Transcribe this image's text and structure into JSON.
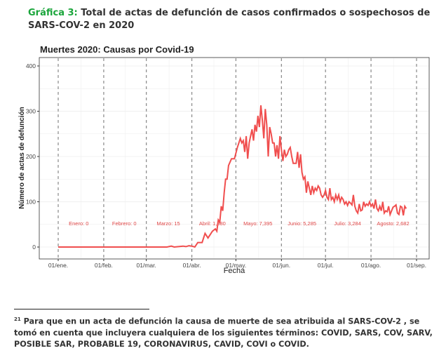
{
  "caption": {
    "label": "Gráfica 3:",
    "text": " Total de actas de defunción de casos confirmados o sospechosos de SARS-COV-2  en 2020"
  },
  "footnote": {
    "number": "21",
    "text": " Para que en un acta de defunción la causa de muerte de sea atribuida al SARS-COV-2 , se tomó en cuenta que incluyera cualquiera de los siguientes términos: COVID, SARS, COV, SARV, POSIBLE SAR, PROBABLE 19, CORONAVIRUS, CAVID, COVI o COVID."
  },
  "chart_data": {
    "type": "line",
    "title": "Muertes 2020: Causas por Covid-19",
    "xlabel": "Fecha",
    "ylabel": "Número de actas de defunción",
    "ylim": [
      0,
      400
    ],
    "yticks": [
      0,
      100,
      200,
      300,
      400
    ],
    "xlim": [
      "2020-01-01",
      "2020-09-01"
    ],
    "xticks": [
      {
        "date": "2020-01-01",
        "label": "01/ene."
      },
      {
        "date": "2020-02-01",
        "label": "01/feb."
      },
      {
        "date": "2020-03-01",
        "label": "01/mar."
      },
      {
        "date": "2020-04-01",
        "label": "01/abr."
      },
      {
        "date": "2020-05-01",
        "label": "01/may."
      },
      {
        "date": "2020-06-01",
        "label": "01/jun."
      },
      {
        "date": "2020-07-01",
        "label": "01/jul."
      },
      {
        "date": "2020-08-01",
        "label": "01/ago."
      },
      {
        "date": "2020-09-01",
        "label": "01/sep."
      }
    ],
    "grid": true,
    "line_color": "#f04e4e",
    "annotations": [
      {
        "date": "2020-01-15",
        "label": "Enero: 0"
      },
      {
        "date": "2020-02-15",
        "label": "Febrero: 0"
      },
      {
        "date": "2020-03-16",
        "label": "Marzo: 15"
      },
      {
        "date": "2020-04-15",
        "label": "Abril: 1,880"
      },
      {
        "date": "2020-05-16",
        "label": "Mayo: 7,395"
      },
      {
        "date": "2020-06-15",
        "label": "Junio: 5,285"
      },
      {
        "date": "2020-07-16",
        "label": "Julio: 3,284"
      },
      {
        "date": "2020-08-16",
        "label": "Agosto: 2,682"
      }
    ],
    "series": [
      {
        "x": [
          "2020-01-01",
          "2020-03-15",
          "2020-03-18",
          "2020-03-20",
          "2020-03-23",
          "2020-03-26",
          "2020-03-28",
          "2020-03-30",
          "2020-04-01",
          "2020-04-03",
          "2020-04-05",
          "2020-04-08",
          "2020-04-10",
          "2020-04-12",
          "2020-04-15",
          "2020-04-17",
          "2020-04-18",
          "2020-04-19",
          "2020-04-20",
          "2020-04-21",
          "2020-04-22",
          "2020-04-23",
          "2020-04-24",
          "2020-04-25",
          "2020-04-26",
          "2020-04-28",
          "2020-04-30",
          "2020-05-02",
          "2020-05-04",
          "2020-05-05",
          "2020-05-06",
          "2020-05-07",
          "2020-05-08",
          "2020-05-09",
          "2020-05-10",
          "2020-05-11",
          "2020-05-12",
          "2020-05-13",
          "2020-05-14",
          "2020-05-15",
          "2020-05-16",
          "2020-05-17",
          "2020-05-18",
          "2020-05-19",
          "2020-05-20",
          "2020-05-21",
          "2020-05-22",
          "2020-05-23",
          "2020-05-24",
          "2020-05-25",
          "2020-05-26",
          "2020-05-27",
          "2020-05-28",
          "2020-05-29",
          "2020-05-30",
          "2020-05-31",
          "2020-06-01",
          "2020-06-02",
          "2020-06-03",
          "2020-06-04",
          "2020-06-05",
          "2020-06-06",
          "2020-06-07",
          "2020-06-08",
          "2020-06-09",
          "2020-06-10",
          "2020-06-11",
          "2020-06-12",
          "2020-06-13",
          "2020-06-14",
          "2020-06-15",
          "2020-06-16",
          "2020-06-17",
          "2020-06-18",
          "2020-06-19",
          "2020-06-20",
          "2020-06-21",
          "2020-06-22",
          "2020-06-23",
          "2020-06-24",
          "2020-06-25",
          "2020-06-26",
          "2020-06-27",
          "2020-06-28",
          "2020-06-29",
          "2020-06-30",
          "2020-07-01",
          "2020-07-02",
          "2020-07-03",
          "2020-07-04",
          "2020-07-05",
          "2020-07-06",
          "2020-07-07",
          "2020-07-08",
          "2020-07-09",
          "2020-07-10",
          "2020-07-11",
          "2020-07-12",
          "2020-07-13",
          "2020-07-14",
          "2020-07-15",
          "2020-07-16",
          "2020-07-17",
          "2020-07-18",
          "2020-07-19",
          "2020-07-20",
          "2020-07-21",
          "2020-07-22",
          "2020-07-23",
          "2020-07-24",
          "2020-07-25",
          "2020-07-26",
          "2020-07-27",
          "2020-07-28",
          "2020-07-29",
          "2020-07-30",
          "2020-07-31",
          "2020-08-01",
          "2020-08-02",
          "2020-08-03",
          "2020-08-04",
          "2020-08-05",
          "2020-08-06",
          "2020-08-07",
          "2020-08-08",
          "2020-08-09",
          "2020-08-10",
          "2020-08-11",
          "2020-08-12",
          "2020-08-13",
          "2020-08-14",
          "2020-08-15",
          "2020-08-16",
          "2020-08-17",
          "2020-08-18",
          "2020-08-19",
          "2020-08-20",
          "2020-08-21",
          "2020-08-22",
          "2020-08-23",
          "2020-08-24",
          "2020-08-25"
        ],
        "y": [
          0,
          0,
          2,
          0,
          1,
          2,
          1,
          3,
          2,
          0,
          10,
          10,
          30,
          20,
          35,
          40,
          35,
          60,
          55,
          90,
          80,
          120,
          150,
          150,
          180,
          195,
          195,
          220,
          240,
          230,
          235,
          210,
          245,
          195,
          230,
          245,
          260,
          235,
          270,
          255,
          290,
          265,
          313,
          280,
          240,
          305,
          270,
          200,
          265,
          250,
          230,
          230,
          200,
          225,
          195,
          245,
          215,
          190,
          215,
          200,
          205,
          215,
          220,
          200,
          185,
          185,
          185,
          210,
          175,
          205,
          165,
          150,
          155,
          120,
          145,
          130,
          115,
          135,
          120,
          130,
          125,
          135,
          130,
          115,
          110,
          115,
          125,
          110,
          105,
          130,
          105,
          110,
          100,
          115,
          105,
          115,
          100,
          110,
          105,
          95,
          100,
          92,
          100,
          97,
          93,
          115,
          90,
          80,
          75,
          95,
          80,
          82,
          100,
          90,
          95,
          92,
          100,
          90,
          95,
          85,
          105,
          85,
          80,
          90,
          80,
          100,
          75,
          80,
          78,
          90,
          72,
          80,
          88,
          90,
          93,
          75,
          72,
          90,
          88,
          70,
          90,
          85
        ]
      }
    ]
  }
}
